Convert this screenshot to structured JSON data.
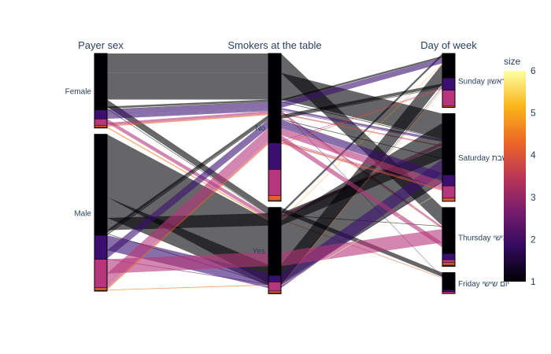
{
  "chart_data": {
    "type": "parallel_categories",
    "dimensions": [
      {
        "label": "Payer sex",
        "categories": [
          {
            "label": "Female",
            "counts": [
              87,
              14,
              10,
              3,
              1,
              0
            ]
          },
          {
            "label": "Male",
            "counts": [
              156,
              37,
              44,
              4,
              0,
              1
            ]
          }
        ]
      },
      {
        "label": "Smokers at the table",
        "categories": [
          {
            "label": "No",
            "counts": [
              138,
              41,
              40,
              8,
              0,
              1
            ]
          },
          {
            "label": "Yes",
            "counts": [
              105,
              10,
              14,
              3,
              1,
              0
            ]
          }
        ]
      },
      {
        "label": "Day of week",
        "categories": [
          {
            "label": "Sunday יום ראשון",
            "counts": [
              40,
              20,
              26,
              2,
              0,
              0
            ]
          },
          {
            "label": "Saturday יום שבת",
            "counts": [
              100,
              18,
              20,
              5,
              0,
              0
            ]
          },
          {
            "label": "Thursday יום חמישי",
            "counts": [
              75,
              10,
              5,
              4,
              1,
              1
            ]
          },
          {
            "label": "Friday יום שישי",
            "counts": [
              28,
              3,
              3,
              0,
              0,
              0
            ]
          }
        ]
      }
    ],
    "color_variable": "size",
    "colorscale_name": "Inferno",
    "colorscale": [
      "#0d0887",
      "#000004",
      "#320a5e",
      "#781c6d",
      "#bc3754",
      "#ed6925",
      "#fbb61a",
      "#fcffa4"
    ],
    "size_colors": {
      "1": "#000004",
      "2": "#3b0f70",
      "3": "#b5367a",
      "4": "#e65d2f",
      "5": "#fb9b06",
      "6": "#fcffa4"
    },
    "colorbar": {
      "title": "size",
      "range": [
        1,
        6
      ],
      "ticks": [
        "1",
        "2",
        "3",
        "4",
        "5",
        "6"
      ]
    }
  }
}
